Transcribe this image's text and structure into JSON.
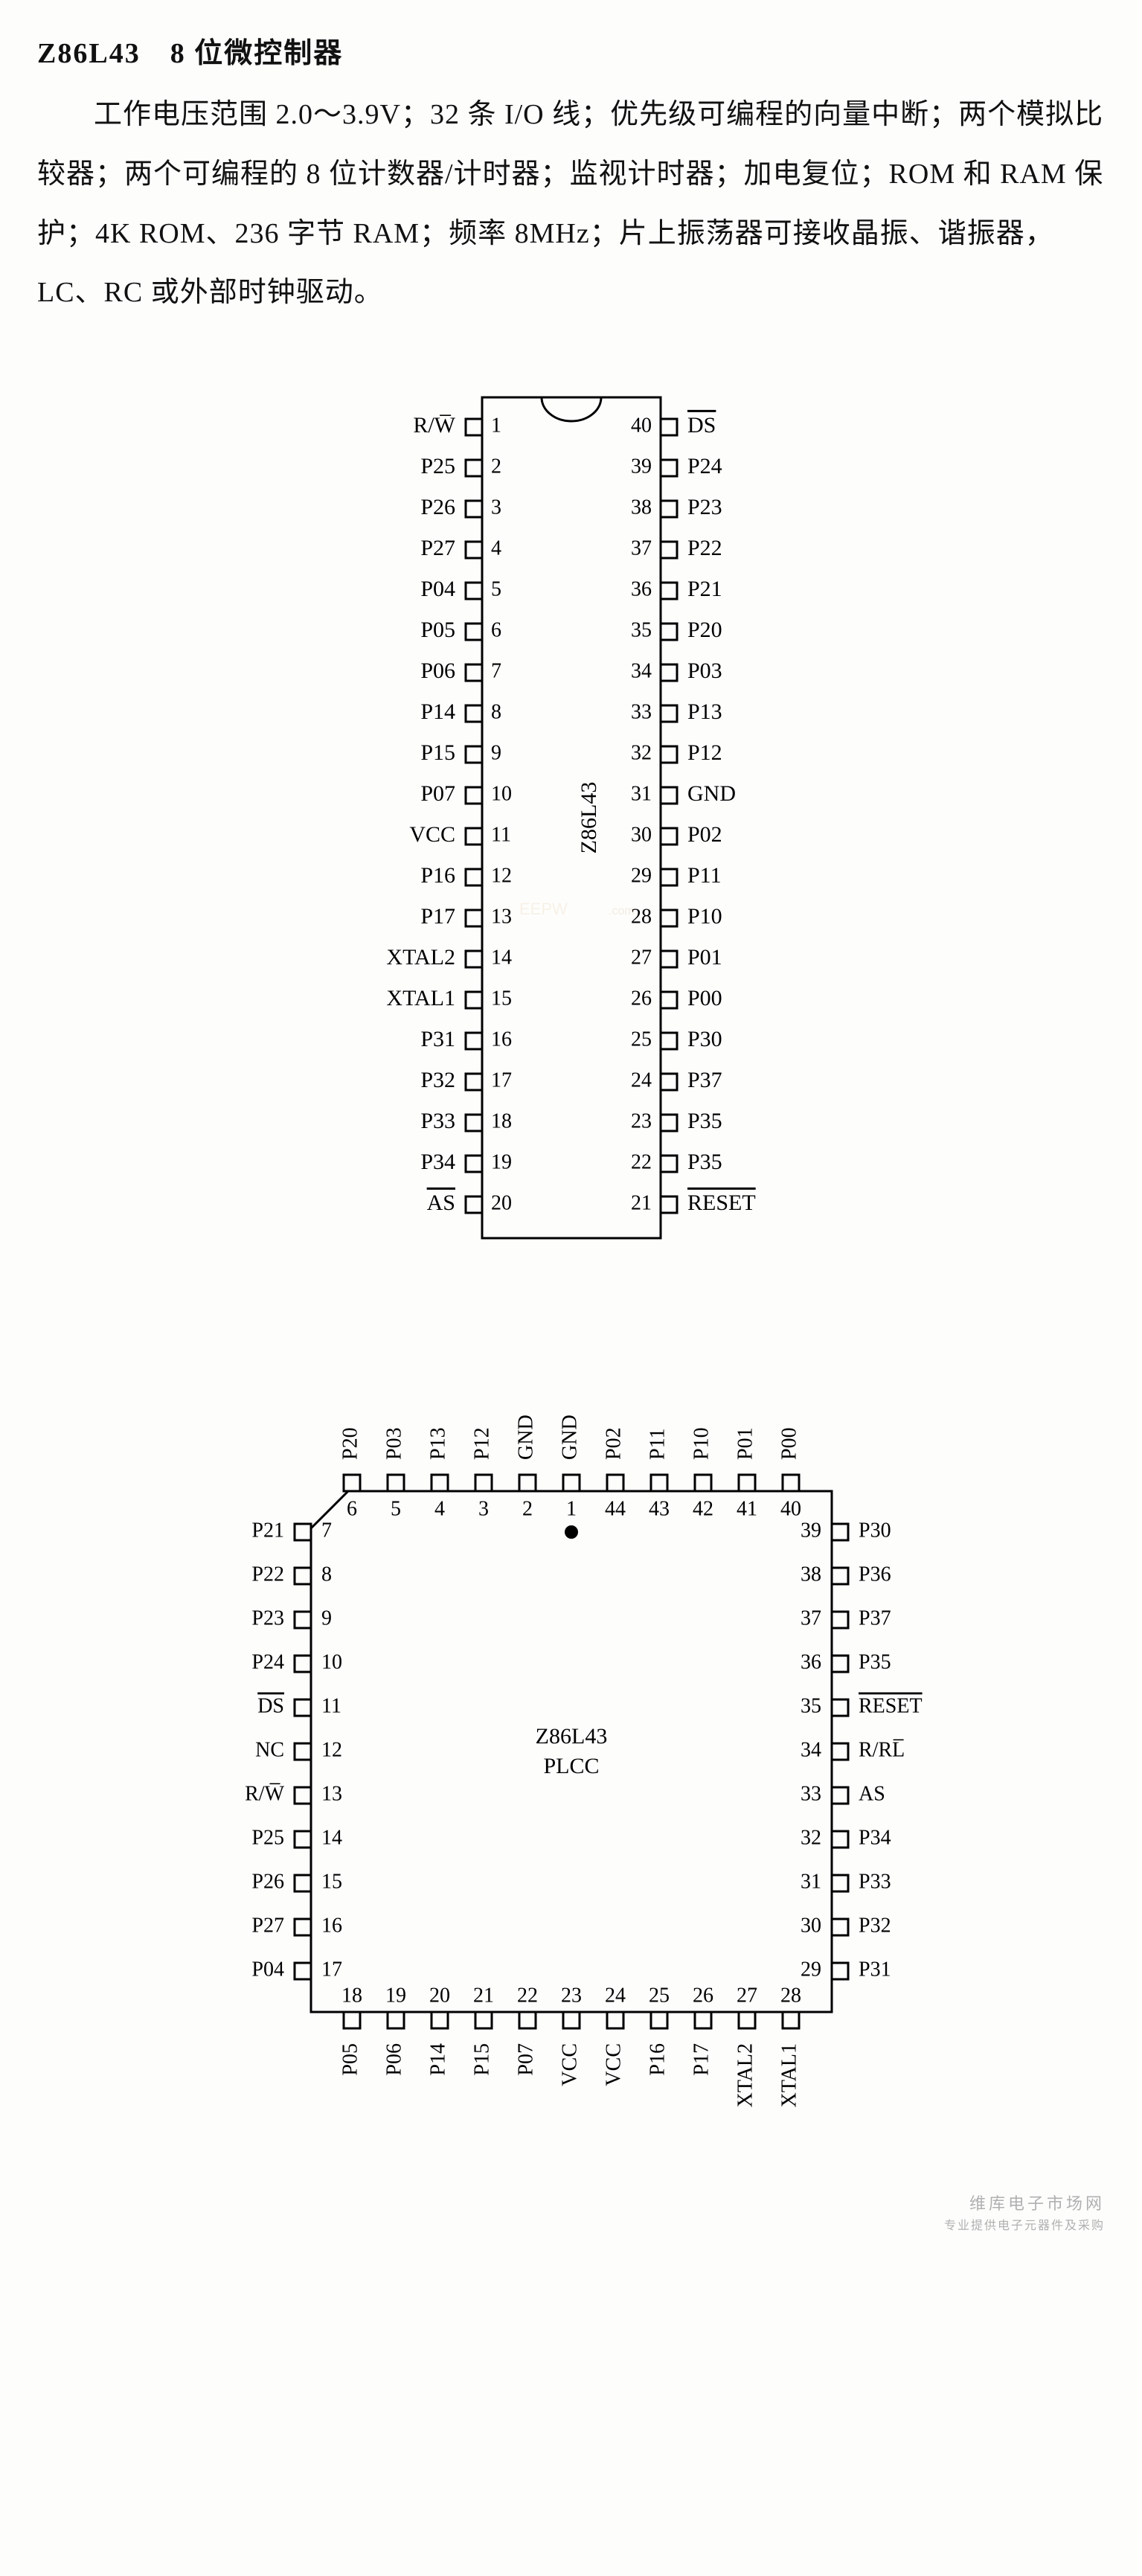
{
  "title": "Z86L43　8 位微控制器",
  "desc": "工作电压范围 2.0～3.9V；32 条 I/O 线；优先级可编程的向量中断；两个模拟比较器；两个可编程的 8 位计数器/计时器；监视计时器；加电复位；ROM 和 RAM 保护；4K ROM、236 字节 RAM；频率 8MHz；片上振荡器可接收晶振、谐振器，LC、RC 或外部时钟驱动。",
  "dip": {
    "name": "Z86L43",
    "left": [
      {
        "n": 1,
        "l": "R/W̅",
        "ov": false
      },
      {
        "n": 2,
        "l": "P25"
      },
      {
        "n": 3,
        "l": "P26"
      },
      {
        "n": 4,
        "l": "P27"
      },
      {
        "n": 5,
        "l": "P04"
      },
      {
        "n": 6,
        "l": "P05"
      },
      {
        "n": 7,
        "l": "P06"
      },
      {
        "n": 8,
        "l": "P14"
      },
      {
        "n": 9,
        "l": "P15"
      },
      {
        "n": 10,
        "l": "P07"
      },
      {
        "n": 11,
        "l": "VCC"
      },
      {
        "n": 12,
        "l": "P16"
      },
      {
        "n": 13,
        "l": "P17"
      },
      {
        "n": 14,
        "l": "XTAL2"
      },
      {
        "n": 15,
        "l": "XTAL1"
      },
      {
        "n": 16,
        "l": "P31"
      },
      {
        "n": 17,
        "l": "P32"
      },
      {
        "n": 18,
        "l": "P33"
      },
      {
        "n": 19,
        "l": "P34"
      },
      {
        "n": 20,
        "l": "AS",
        "ov": true
      }
    ],
    "right": [
      {
        "n": 40,
        "l": "DS",
        "ov": true
      },
      {
        "n": 39,
        "l": "P24"
      },
      {
        "n": 38,
        "l": "P23"
      },
      {
        "n": 37,
        "l": "P22"
      },
      {
        "n": 36,
        "l": "P21"
      },
      {
        "n": 35,
        "l": "P20"
      },
      {
        "n": 34,
        "l": "P03"
      },
      {
        "n": 33,
        "l": "P13"
      },
      {
        "n": 32,
        "l": "P12"
      },
      {
        "n": 31,
        "l": "GND"
      },
      {
        "n": 30,
        "l": "P02"
      },
      {
        "n": 29,
        "l": "P11"
      },
      {
        "n": 28,
        "l": "P10"
      },
      {
        "n": 27,
        "l": "P01"
      },
      {
        "n": 26,
        "l": "P00"
      },
      {
        "n": 25,
        "l": "P30"
      },
      {
        "n": 24,
        "l": "P37"
      },
      {
        "n": 23,
        "l": "P35"
      },
      {
        "n": 22,
        "l": "P35"
      },
      {
        "n": 21,
        "l": "RESET",
        "ov": true
      }
    ]
  },
  "plcc": {
    "name": "Z86L43",
    "sub": "PLCC",
    "top": [
      {
        "n": 6,
        "l": "P20"
      },
      {
        "n": 5,
        "l": "P03"
      },
      {
        "n": 4,
        "l": "P13"
      },
      {
        "n": 3,
        "l": "P12"
      },
      {
        "n": 2,
        "l": "GND"
      },
      {
        "n": 1,
        "l": "GND"
      },
      {
        "n": 44,
        "l": "P02"
      },
      {
        "n": 43,
        "l": "P11"
      },
      {
        "n": 42,
        "l": "P10"
      },
      {
        "n": 41,
        "l": "P01"
      },
      {
        "n": 40,
        "l": "P00"
      }
    ],
    "left": [
      {
        "n": 7,
        "l": "P21"
      },
      {
        "n": 8,
        "l": "P22"
      },
      {
        "n": 9,
        "l": "P23"
      },
      {
        "n": 10,
        "l": "P24"
      },
      {
        "n": 11,
        "l": "DS",
        "ov": true
      },
      {
        "n": 12,
        "l": "NC"
      },
      {
        "n": 13,
        "l": "R/W̅"
      },
      {
        "n": 14,
        "l": "P25"
      },
      {
        "n": 15,
        "l": "P26"
      },
      {
        "n": 16,
        "l": "P27"
      },
      {
        "n": 17,
        "l": "P04"
      }
    ],
    "right": [
      {
        "n": 39,
        "l": "P30"
      },
      {
        "n": 38,
        "l": "P36"
      },
      {
        "n": 37,
        "l": "P37"
      },
      {
        "n": 36,
        "l": "P35"
      },
      {
        "n": 35,
        "l": "RESET",
        "ov": true
      },
      {
        "n": 34,
        "l": "R/RL̅"
      },
      {
        "n": 33,
        "l": "AS"
      },
      {
        "n": 32,
        "l": "P34"
      },
      {
        "n": 31,
        "l": "P33"
      },
      {
        "n": 30,
        "l": "P32"
      },
      {
        "n": 29,
        "l": "P31"
      }
    ],
    "bottom": [
      {
        "n": 18,
        "l": "P05"
      },
      {
        "n": 19,
        "l": "P06"
      },
      {
        "n": 20,
        "l": "P14"
      },
      {
        "n": 21,
        "l": "P15"
      },
      {
        "n": 22,
        "l": "P07"
      },
      {
        "n": 23,
        "l": "VCC"
      },
      {
        "n": 24,
        "l": "VCC"
      },
      {
        "n": 25,
        "l": "P16"
      },
      {
        "n": 26,
        "l": "P17"
      },
      {
        "n": 27,
        "l": "XTAL2"
      },
      {
        "n": 28,
        "l": "XTAL1"
      }
    ]
  },
  "style": {
    "stroke": "#000",
    "sw": 3,
    "fill": "#fdfdfc",
    "pinBox": {
      "w": 22,
      "h": 22
    },
    "watermark_color": "#e8cfa8"
  }
}
